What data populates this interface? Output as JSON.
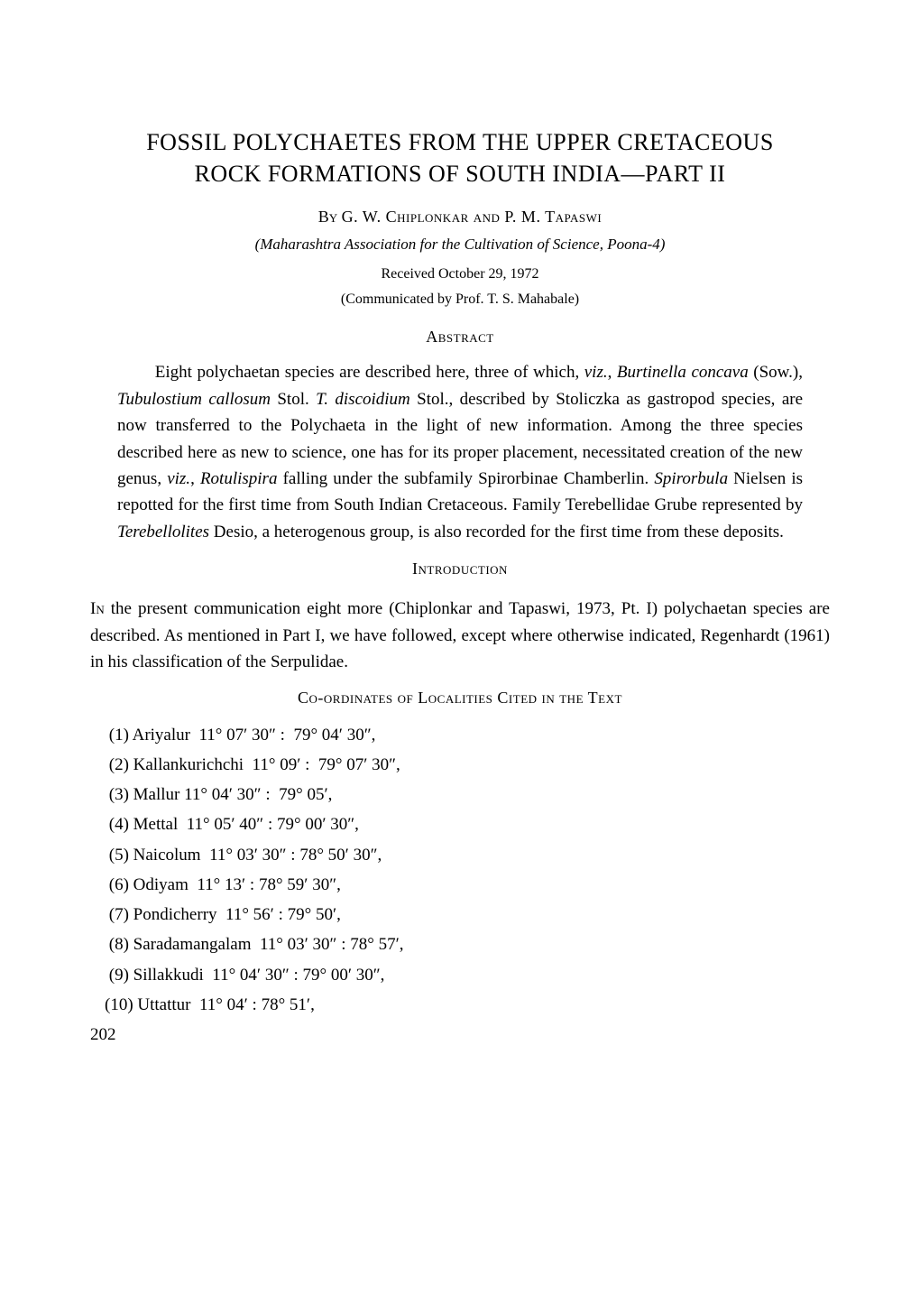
{
  "title_line1": "FOSSIL POLYCHAETES FROM THE UPPER CRETACEOUS",
  "title_line2": "ROCK FORMATIONS OF SOUTH INDIA—PART II",
  "byline_by": "By ",
  "byline_authors": "G. W. Chiplonkar and P. M. Tapaswi",
  "affiliation": "(Maharashtra Association  for the Cultivation of Science, Poona-4)",
  "received": "Received October 29, 1972",
  "communicated": "(Communicated by Prof. T. S. Mahabale)",
  "abstract_heading": "Abstract",
  "abstract_html": "Eight polychaetan species are described here, three of which, <span class=\"ital\">viz.</span>, <span class=\"ital\">Burtinella concava</span> (Sow.), <span class=\"ital\">Tubulostium callosum</span> Stol.  <span class=\"ital\">T. discoidium</span> Stol., described by Stoliczka as gastropod species, are now transferred to the Polychaeta in the light of new information. Among the three species described here as new to science, one has for its proper placement, necessitated creation of the new genus, <span class=\"ital\">viz.</span>, <span class=\"ital\">Rotulispira</span> falling under the subfamily Spirorbinae Chamberlin. <span class=\"ital\">Spirorbula</span> Nielsen is repotted for the first time from South Indian Cretaceous. Family Terebellidae Grube represented by <span class=\"ital\">Terebellolites</span> Desio, a heterogenous group, is also recorded for the first time from these deposits.",
  "intro_heading": "Introduction",
  "intro_html": "<span class=\"sc-lead\">In</span> the present communication eight more (Chiplonkar and Tapaswi, 1973, Pt. I) polychaetan species are described. As mentioned in Part I, we have followed, except  where otherwise indicated, Regenhardt (1961) in his classification of the Serpulidae.",
  "coords_heading": "Co-ordinates of Localities Cited in the Text",
  "localities": [
    " (1) Ariyalur  11° 07′ 30″ :  79° 04′ 30″,",
    " (2) Kallankurichchi  11° 09′ :  79° 07′ 30″,",
    " (3) Mallur 11° 04′ 30″ :  79° 05′,",
    " (4) Mettal  11° 05′ 40″ : 79° 00′ 30″,",
    " (5) Naicolum  11° 03′ 30″ : 78° 50′ 30″,",
    " (6) Odiyam  11° 13′ : 78° 59′ 30″,",
    " (7) Pondicherry  11° 56′ : 79° 50′,",
    " (8) Saradamangalam  11° 03′ 30″ : 78° 57′,",
    " (9) Sillakkudi  11° 04′ 30″ : 79° 00′ 30″,",
    "(10) Uttattur  11° 04′ : 78° 51′,"
  ],
  "page_number": "202"
}
